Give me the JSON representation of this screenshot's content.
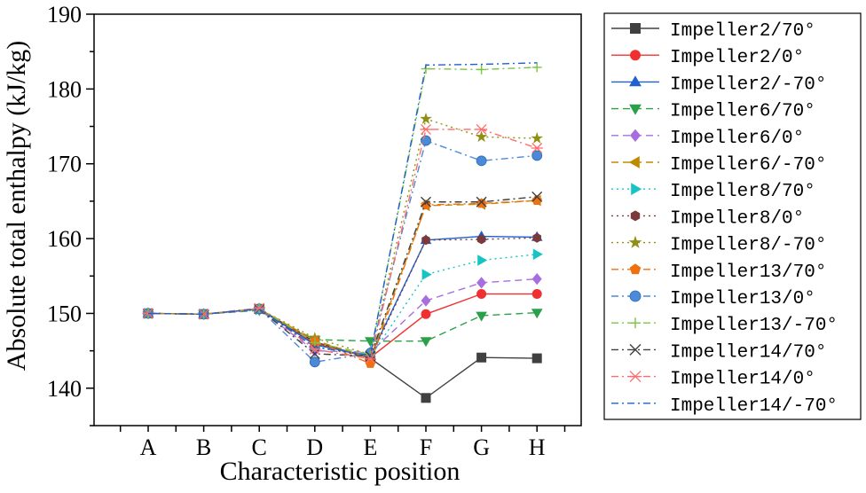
{
  "chart_data": {
    "type": "line",
    "title": "",
    "xlabel": "Characteristic position",
    "ylabel": "Absolute total enthalpy (kJ/kg)",
    "categories": [
      "A",
      "B",
      "C",
      "D",
      "E",
      "F",
      "G",
      "H"
    ],
    "ylim": [
      135,
      190
    ],
    "yticks": [
      140,
      150,
      160,
      170,
      180,
      190
    ],
    "grid": false,
    "legend_position": "right",
    "series": [
      {
        "name": "Impeller2/70°",
        "color": "#404040",
        "dash": "solid",
        "marker": "square",
        "values": [
          150.0,
          149.9,
          150.6,
          146.2,
          144.0,
          138.7,
          144.1,
          144.0
        ]
      },
      {
        "name": "Impeller2/0°",
        "color": "#f03030",
        "dash": "solid",
        "marker": "circle",
        "values": [
          150.0,
          149.9,
          150.6,
          146.0,
          144.1,
          149.9,
          152.6,
          152.6
        ]
      },
      {
        "name": "Impeller2/-70°",
        "color": "#1f5fd0",
        "dash": "solid",
        "marker": "triangle-up",
        "values": [
          150.0,
          149.9,
          150.6,
          145.8,
          144.3,
          159.8,
          160.3,
          160.2
        ]
      },
      {
        "name": "Impeller6/70°",
        "color": "#2aa04a",
        "dash": "dash",
        "marker": "triangle-down",
        "values": [
          150.0,
          149.9,
          150.4,
          146.5,
          146.3,
          146.3,
          149.7,
          150.1
        ]
      },
      {
        "name": "Impeller6/0°",
        "color": "#a86ee0",
        "dash": "dash",
        "marker": "diamond",
        "values": [
          150.0,
          149.9,
          150.5,
          145.0,
          144.8,
          151.7,
          154.1,
          154.6
        ]
      },
      {
        "name": "Impeller6/-70°",
        "color": "#c08a00",
        "dash": "dash",
        "marker": "triangle-left",
        "values": [
          150.0,
          149.9,
          150.6,
          146.4,
          144.0,
          164.4,
          164.6,
          165.1
        ]
      },
      {
        "name": "Impeller8/70°",
        "color": "#17c4c4",
        "dash": "dot",
        "marker": "triangle-right",
        "values": [
          150.0,
          149.9,
          150.5,
          145.5,
          144.2,
          155.2,
          157.1,
          157.9
        ]
      },
      {
        "name": "Impeller8/0°",
        "color": "#7a3a3a",
        "dash": "dot",
        "marker": "hexagon",
        "values": [
          150.0,
          149.9,
          150.6,
          145.9,
          144.0,
          159.8,
          159.9,
          160.1
        ]
      },
      {
        "name": "Impeller8/-70°",
        "color": "#8f8f14",
        "dash": "dot",
        "marker": "star",
        "values": [
          150.0,
          149.9,
          150.6,
          146.7,
          144.5,
          176.0,
          173.6,
          173.4
        ]
      },
      {
        "name": "Impeller13/70°",
        "color": "#f07010",
        "dash": "dashdot",
        "marker": "pentagon",
        "values": [
          150.0,
          149.9,
          150.7,
          146.3,
          143.3,
          164.5,
          164.7,
          165.1
        ]
      },
      {
        "name": "Impeller13/0°",
        "color": "#4a8ad8",
        "dash": "dashdot",
        "marker": "sphere",
        "values": [
          150.0,
          149.9,
          150.6,
          143.5,
          144.7,
          173.1,
          170.4,
          171.1
        ]
      },
      {
        "name": "Impeller13/-70°",
        "color": "#7cc442",
        "dash": "dashdot",
        "marker": "plus",
        "values": [
          150.0,
          149.9,
          150.7,
          146.1,
          144.5,
          182.7,
          182.6,
          182.9
        ]
      },
      {
        "name": "Impeller14/70°",
        "color": "#404040",
        "dash": "dashdot",
        "marker": "x",
        "values": [
          150.0,
          149.9,
          150.6,
          144.6,
          144.3,
          164.9,
          164.9,
          165.6
        ]
      },
      {
        "name": "Impeller14/0°",
        "color": "#ff6b6b",
        "dash": "dashdot",
        "marker": "asterisk",
        "values": [
          150.0,
          149.9,
          150.7,
          145.2,
          143.9,
          174.6,
          174.6,
          172.1
        ]
      },
      {
        "name": "Impeller14/-70°",
        "color": "#1f5fd0",
        "dash": "dashdot",
        "marker": "none",
        "values": [
          150.0,
          149.9,
          150.6,
          145.5,
          144.4,
          183.2,
          183.3,
          183.5
        ]
      }
    ]
  }
}
